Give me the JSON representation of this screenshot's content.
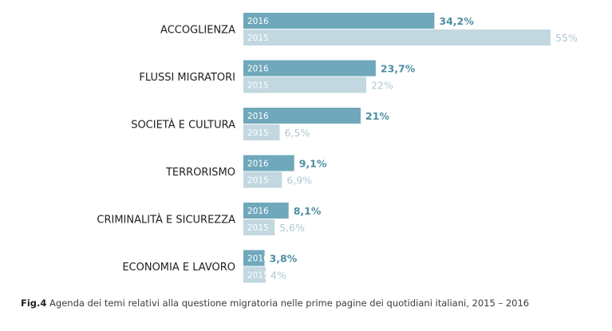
{
  "chart_data": {
    "type": "bar",
    "orientation": "horizontal",
    "categories": [
      "ACCOGLIENZA",
      "FLUSSI MIGRATORI",
      "SOCIETÀ E CULTURA",
      "TERRORISMO",
      "CRIMINALITÀ E SICUREZZA",
      "ECONOMIA E LAVORO"
    ],
    "series": [
      {
        "name": "2016",
        "values": [
          34.2,
          23.7,
          21,
          9.1,
          8.1,
          3.8
        ],
        "labels": [
          "34,2%",
          "23,7%",
          "21%",
          "9,1%",
          "8,1%",
          "3,8%"
        ],
        "color": "#6fa8bb",
        "label_color": "#4e8ea3"
      },
      {
        "name": "2015",
        "values": [
          55,
          22,
          6.5,
          6.9,
          5.6,
          4
        ],
        "labels": [
          "55%",
          "22%",
          "6,5%",
          "6,9%",
          "5,6%",
          "4%"
        ],
        "color": "#c2d7df",
        "label_color": "#afc8d2"
      }
    ],
    "xlim": [
      0,
      55
    ],
    "grid": false,
    "legend": "inside-bars"
  },
  "caption": {
    "fig": "Fig.4",
    "text": " Agenda dei temi relativi alla questione migratoria nelle prime pagine dei quotidiani italiani, 2015 – 2016"
  }
}
